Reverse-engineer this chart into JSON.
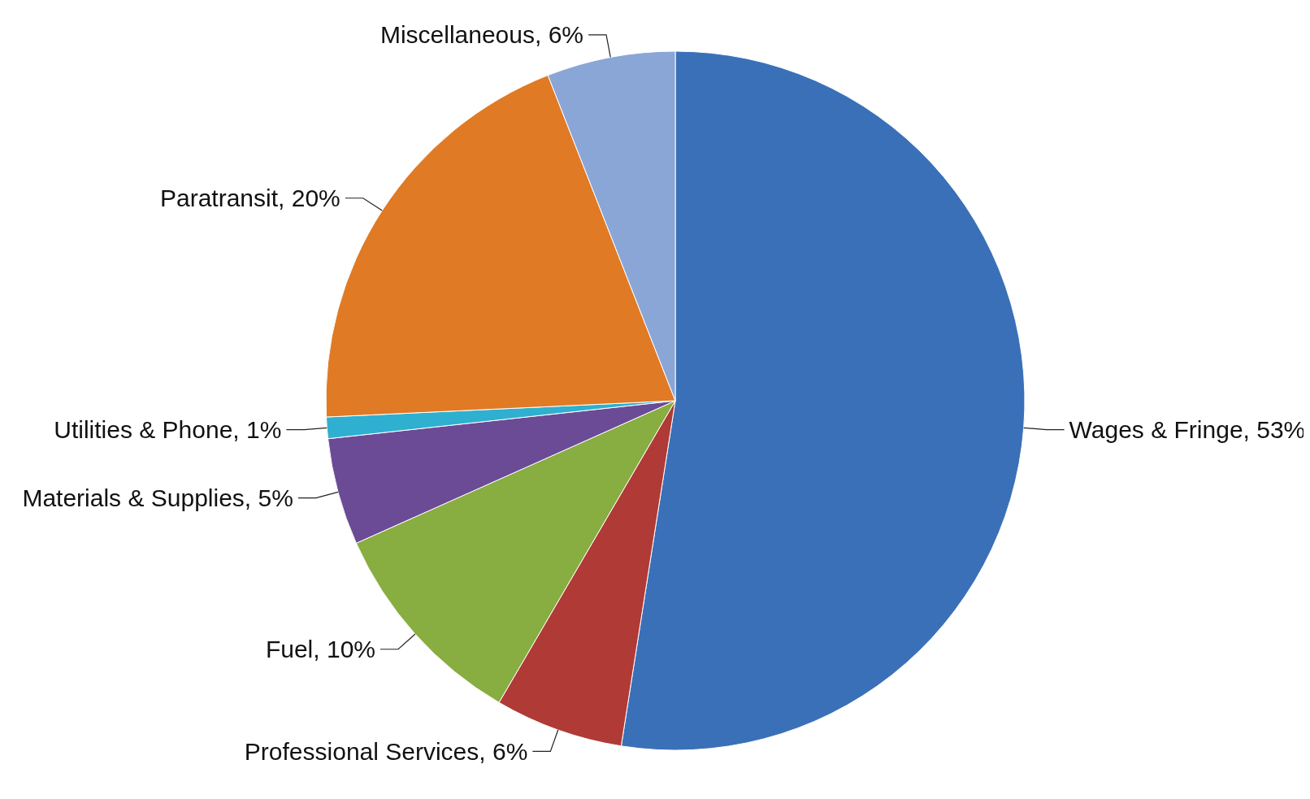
{
  "chart_data": {
    "type": "pie",
    "categories": [
      "Wages & Fringe",
      "Professional Services",
      "Fuel",
      "Materials & Supplies",
      "Utilities & Phone",
      "Paratransit",
      "Miscellaneous"
    ],
    "values": [
      53,
      6,
      10,
      5,
      1,
      20,
      6
    ],
    "value_labels": [
      "53%",
      "6%",
      "10%",
      "5%",
      "1%",
      "20%",
      "6%"
    ],
    "colors": [
      "#3a70b8",
      "#b03a35",
      "#88ad40",
      "#6b4b96",
      "#2fb0d0",
      "#e07a25",
      "#8aa6d6"
    ]
  }
}
